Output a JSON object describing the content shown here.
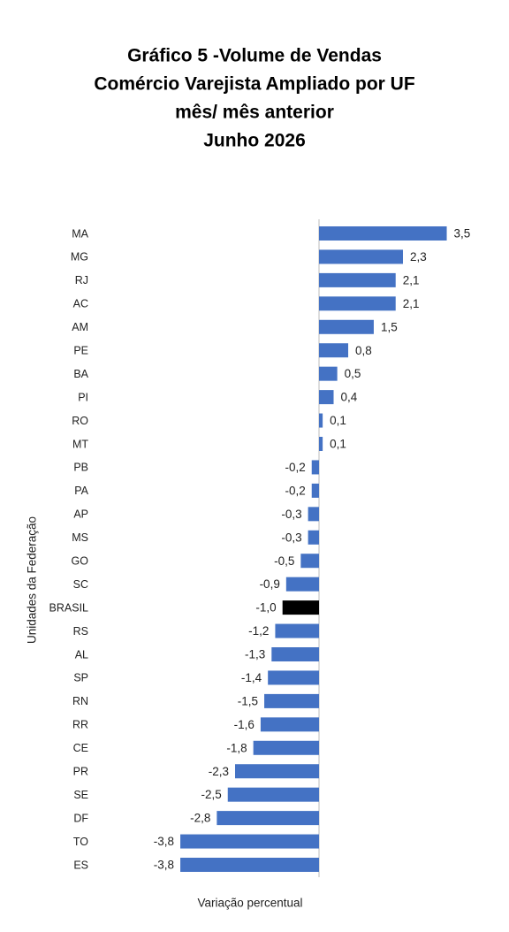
{
  "chart_data": {
    "type": "hbar",
    "title": [
      "Gráfico 5 -Volume de Vendas",
      "Comércio Varejista Ampliado por UF",
      "mês/ mês anterior",
      "Junho 2026"
    ],
    "x_label": "Variação percentual",
    "y_label": "Unidades da Federação",
    "categories": [
      "MA",
      "MG",
      "RJ",
      "AC",
      "AM",
      "PE",
      "BA",
      "PI",
      "RO",
      "MT",
      "PB",
      "PA",
      "AP",
      "MS",
      "GO",
      "SC",
      "BRASIL",
      "RS",
      "AL",
      "SP",
      "RN",
      "RR",
      "CE",
      "PR",
      "SE",
      "DF",
      "TO",
      "ES"
    ],
    "values": [
      3.5,
      2.3,
      2.1,
      2.1,
      1.5,
      0.8,
      0.5,
      0.4,
      0.1,
      0.1,
      -0.2,
      -0.2,
      -0.3,
      -0.3,
      -0.5,
      -0.9,
      -1.0,
      -1.2,
      -1.3,
      -1.4,
      -1.5,
      -1.6,
      -1.8,
      -2.3,
      -2.5,
      -2.8,
      -3.8,
      -3.8
    ],
    "value_labels": [
      "3,5",
      "2,3",
      "2,1",
      "2,1",
      "1,5",
      "0,8",
      "0,5",
      "0,4",
      "0,1",
      "0,1",
      "-0,2",
      "-0,2",
      "-0,3",
      "-0,3",
      "-0,5",
      "-0,9",
      "-1,0",
      "-1,2",
      "-1,3",
      "-1,4",
      "-1,5",
      "-1,6",
      "-1,8",
      "-2,3",
      "-2,5",
      "-2,8",
      "-3,8",
      "-3,8"
    ],
    "colors": [
      "#4472c4",
      "#4472c4",
      "#4472c4",
      "#4472c4",
      "#4472c4",
      "#4472c4",
      "#4472c4",
      "#4472c4",
      "#4472c4",
      "#4472c4",
      "#4472c4",
      "#4472c4",
      "#4472c4",
      "#4472c4",
      "#4472c4",
      "#4472c4",
      "#000000",
      "#4472c4",
      "#4472c4",
      "#4472c4",
      "#4472c4",
      "#4472c4",
      "#4472c4",
      "#4472c4",
      "#4472c4",
      "#4472c4",
      "#4472c4",
      "#4472c4"
    ]
  }
}
